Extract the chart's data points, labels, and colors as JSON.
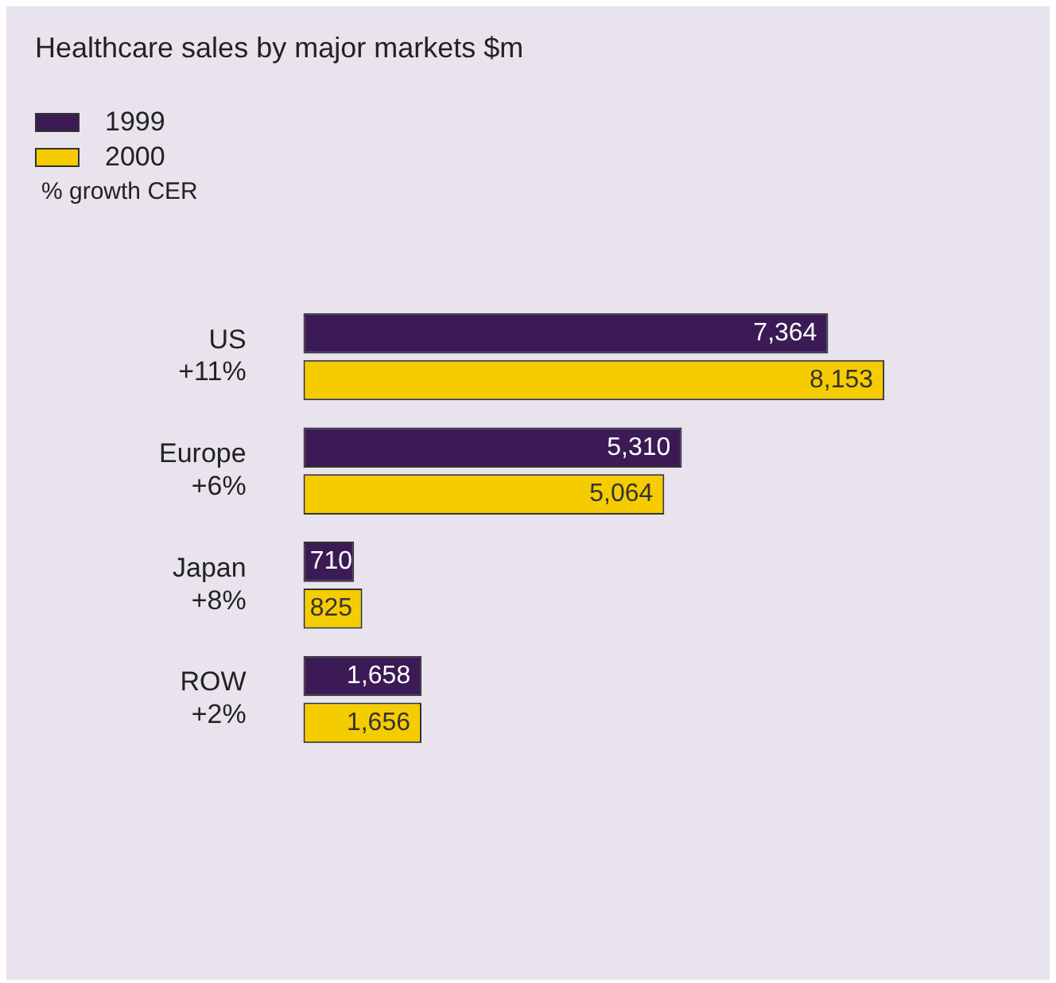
{
  "chart_data": {
    "type": "bar",
    "orientation": "horizontal",
    "title": "Healthcare sales by major markets $m",
    "categories": [
      "US\n+11%",
      "Europe\n+6%",
      "Japan\n+8%",
      "ROW\n+2%"
    ],
    "series": [
      {
        "name": "1999",
        "color": "#3b1a56",
        "values": [
          7364,
          5310,
          710,
          1658
        ],
        "value_labels": [
          "7,364",
          "5,310",
          "710",
          "1,658"
        ]
      },
      {
        "name": "2000",
        "color": "#f5cc00",
        "values": [
          8153,
          5064,
          825,
          1656
        ],
        "value_labels": [
          "8,153",
          "5,064",
          "825",
          "1,656"
        ]
      }
    ],
    "legend": "top left",
    "annotations": [
      "% growth CER"
    ]
  }
}
